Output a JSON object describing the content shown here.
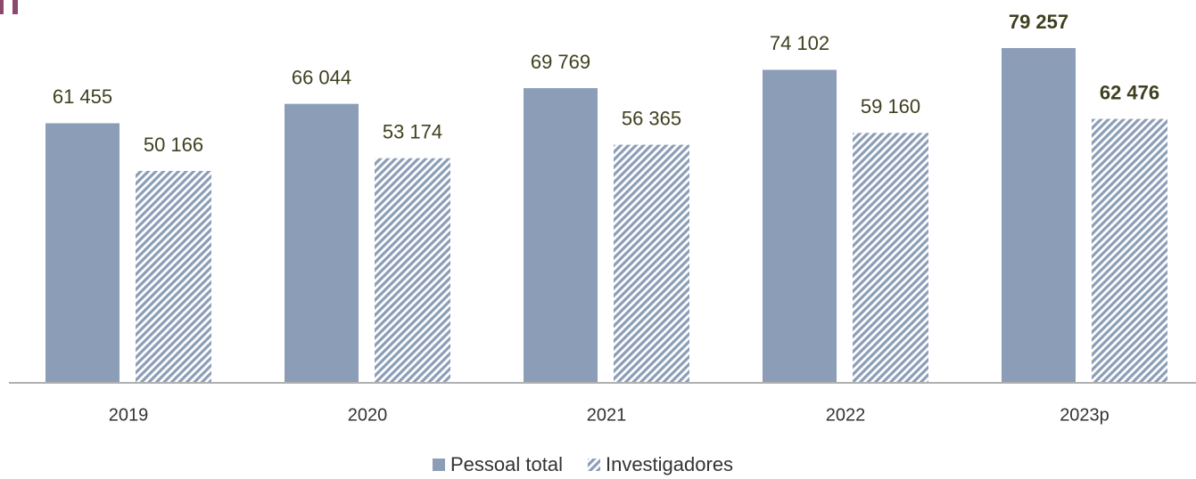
{
  "chart_data": {
    "type": "bar",
    "categories": [
      "2019",
      "2020",
      "2021",
      "2022",
      "2023p"
    ],
    "series": [
      {
        "name": "Pessoal total",
        "color": "#8c9db7",
        "pattern": "solid",
        "values": [
          61455,
          66044,
          69769,
          74102,
          79257
        ],
        "value_labels": [
          "61 455",
          "66 044",
          "69 769",
          "74 102",
          "79 257"
        ]
      },
      {
        "name": "Investigadores",
        "color": "#8c9db7",
        "pattern": "hatch",
        "values": [
          50166,
          53174,
          56365,
          59160,
          62476
        ],
        "value_labels": [
          "50 166",
          "53 174",
          "56 365",
          "59 160",
          "62 476"
        ]
      }
    ],
    "ylim": [
      0,
      90000
    ],
    "highlight_last": true,
    "legend": "bottom"
  }
}
